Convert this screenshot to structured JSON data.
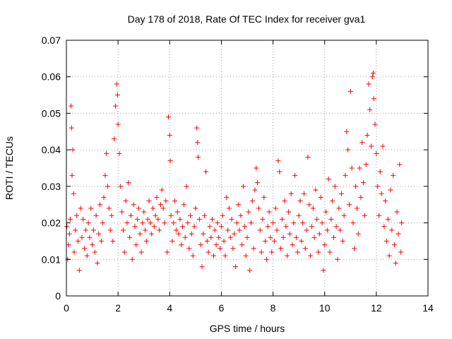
{
  "chart_data": {
    "type": "scatter",
    "title": "Day 178 of 2018, Rate Of TEC Index for receiver gva1",
    "xlabel": "GPS time / hours",
    "ylabel": "ROTI / TECUs",
    "xlim": [
      0,
      14
    ],
    "ylim": [
      0,
      0.07
    ],
    "xticks": [
      "0",
      "2",
      "4",
      "6",
      "8",
      "10",
      "12",
      "14"
    ],
    "yticks": [
      "0",
      "0.01",
      "0.02",
      "0.03",
      "0.04",
      "0.05",
      "0.06",
      "0.07"
    ],
    "grid": true,
    "marker": "plus",
    "color": "#ff0000",
    "series": [
      {
        "points": [
          [
            0.02,
            0.019
          ],
          [
            0.05,
            0.01
          ],
          [
            0.08,
            0.014
          ],
          [
            0.12,
            0.017
          ],
          [
            0.15,
            0.021
          ],
          [
            0.18,
            0.052
          ],
          [
            0.2,
            0.046
          ],
          [
            0.22,
            0.033
          ],
          [
            0.25,
            0.04
          ],
          [
            0.28,
            0.028
          ],
          [
            0.3,
            0.012
          ],
          [
            0.35,
            0.018
          ],
          [
            0.4,
            0.022
          ],
          [
            0.45,
            0.015
          ],
          [
            0.5,
            0.007
          ],
          [
            0.55,
            0.024
          ],
          [
            0.6,
            0.016
          ],
          [
            0.65,
            0.021
          ],
          [
            0.7,
            0.013
          ],
          [
            0.75,
            0.018
          ],
          [
            0.8,
            0.011
          ],
          [
            0.85,
            0.02
          ],
          [
            0.9,
            0.016
          ],
          [
            0.95,
            0.024
          ],
          [
            1.0,
            0.014
          ],
          [
            1.05,
            0.018
          ],
          [
            1.1,
            0.012
          ],
          [
            1.15,
            0.022
          ],
          [
            1.2,
            0.009
          ],
          [
            1.25,
            0.017
          ],
          [
            1.3,
            0.025
          ],
          [
            1.35,
            0.015
          ],
          [
            1.4,
            0.02
          ],
          [
            1.45,
            0.027
          ],
          [
            1.5,
            0.033
          ],
          [
            1.55,
            0.039
          ],
          [
            1.6,
            0.03
          ],
          [
            1.65,
            0.024
          ],
          [
            1.7,
            0.018
          ],
          [
            1.75,
            0.022
          ],
          [
            1.8,
            0.015
          ],
          [
            1.85,
            0.043
          ],
          [
            1.9,
            0.052
          ],
          [
            1.95,
            0.058
          ],
          [
            1.98,
            0.055
          ],
          [
            2.0,
            0.047
          ],
          [
            2.05,
            0.039
          ],
          [
            2.1,
            0.03
          ],
          [
            2.15,
            0.023
          ],
          [
            2.2,
            0.018
          ],
          [
            2.25,
            0.012
          ],
          [
            2.3,
            0.026
          ],
          [
            2.35,
            0.02
          ],
          [
            2.4,
            0.031
          ],
          [
            2.45,
            0.016
          ],
          [
            2.5,
            0.022
          ],
          [
            2.55,
            0.01
          ],
          [
            2.6,
            0.025
          ],
          [
            2.65,
            0.019
          ],
          [
            2.7,
            0.014
          ],
          [
            2.75,
            0.021
          ],
          [
            2.8,
            0.024
          ],
          [
            2.85,
            0.017
          ],
          [
            2.9,
            0.012
          ],
          [
            2.95,
            0.02
          ],
          [
            3.0,
            0.023
          ],
          [
            3.05,
            0.018
          ],
          [
            3.1,
            0.015
          ],
          [
            3.15,
            0.021
          ],
          [
            3.2,
            0.026
          ],
          [
            3.25,
            0.02
          ],
          [
            3.3,
            0.017
          ],
          [
            3.35,
            0.024
          ],
          [
            3.4,
            0.019
          ],
          [
            3.45,
            0.022
          ],
          [
            3.5,
            0.027
          ],
          [
            3.55,
            0.021
          ],
          [
            3.6,
            0.018
          ],
          [
            3.65,
            0.025
          ],
          [
            3.7,
            0.029
          ],
          [
            3.75,
            0.024
          ],
          [
            3.8,
            0.02
          ],
          [
            3.85,
            0.026
          ],
          [
            3.9,
            0.012
          ],
          [
            3.95,
            0.049
          ],
          [
            4.0,
            0.044
          ],
          [
            4.02,
            0.037
          ],
          [
            4.05,
            0.022
          ],
          [
            4.1,
            0.015
          ],
          [
            4.15,
            0.02
          ],
          [
            4.2,
            0.026
          ],
          [
            4.25,
            0.018
          ],
          [
            4.3,
            0.023
          ],
          [
            4.35,
            0.017
          ],
          [
            4.4,
            0.021
          ],
          [
            4.45,
            0.014
          ],
          [
            4.5,
            0.019
          ],
          [
            4.55,
            0.025
          ],
          [
            4.6,
            0.016
          ],
          [
            4.65,
            0.03
          ],
          [
            4.7,
            0.02
          ],
          [
            4.75,
            0.013
          ],
          [
            4.8,
            0.022
          ],
          [
            4.85,
            0.017
          ],
          [
            4.9,
            0.011
          ],
          [
            4.95,
            0.019
          ],
          [
            5.0,
            0.024
          ],
          [
            5.05,
            0.046
          ],
          [
            5.08,
            0.042
          ],
          [
            5.1,
            0.038
          ],
          [
            5.15,
            0.021
          ],
          [
            5.2,
            0.014
          ],
          [
            5.25,
            0.008
          ],
          [
            5.3,
            0.017
          ],
          [
            5.35,
            0.022
          ],
          [
            5.4,
            0.034
          ],
          [
            5.45,
            0.015
          ],
          [
            5.5,
            0.012
          ],
          [
            5.55,
            0.019
          ],
          [
            5.6,
            0.016
          ],
          [
            5.65,
            0.021
          ],
          [
            5.7,
            0.011
          ],
          [
            5.75,
            0.018
          ],
          [
            5.8,
            0.014
          ],
          [
            5.85,
            0.02
          ],
          [
            5.9,
            0.016
          ],
          [
            5.95,
            0.013
          ],
          [
            6.0,
            0.019
          ],
          [
            6.05,
            0.022
          ],
          [
            6.1,
            0.015
          ],
          [
            6.15,
            0.011
          ],
          [
            6.2,
            0.027
          ],
          [
            6.25,
            0.018
          ],
          [
            6.3,
            0.024
          ],
          [
            6.35,
            0.016
          ],
          [
            6.4,
            0.021
          ],
          [
            6.45,
            0.013
          ],
          [
            6.5,
            0.017
          ],
          [
            6.55,
            0.008
          ],
          [
            6.6,
            0.02
          ],
          [
            6.65,
            0.025
          ],
          [
            6.7,
            0.018
          ],
          [
            6.75,
            0.022
          ],
          [
            6.8,
            0.014
          ],
          [
            6.85,
            0.03
          ],
          [
            6.9,
            0.019
          ],
          [
            6.95,
            0.011
          ],
          [
            7.0,
            0.016
          ],
          [
            7.05,
            0.023
          ],
          [
            7.1,
            0.007
          ],
          [
            7.15,
            0.02
          ],
          [
            7.2,
            0.026
          ],
          [
            7.25,
            0.013
          ],
          [
            7.3,
            0.029
          ],
          [
            7.35,
            0.035
          ],
          [
            7.4,
            0.031
          ],
          [
            7.45,
            0.024
          ],
          [
            7.5,
            0.018
          ],
          [
            7.55,
            0.012
          ],
          [
            7.6,
            0.021
          ],
          [
            7.65,
            0.027
          ],
          [
            7.7,
            0.015
          ],
          [
            7.75,
            0.01
          ],
          [
            7.8,
            0.019
          ],
          [
            7.85,
            0.023
          ],
          [
            7.9,
            0.016
          ],
          [
            7.95,
            0.012
          ],
          [
            8.0,
            0.02
          ],
          [
            8.05,
            0.015
          ],
          [
            8.1,
            0.024
          ],
          [
            8.15,
            0.018
          ],
          [
            8.2,
            0.037
          ],
          [
            8.25,
            0.034
          ],
          [
            8.3,
            0.013
          ],
          [
            8.35,
            0.021
          ],
          [
            8.4,
            0.016
          ],
          [
            8.45,
            0.026
          ],
          [
            8.5,
            0.019
          ],
          [
            8.55,
            0.011
          ],
          [
            8.6,
            0.023
          ],
          [
            8.65,
            0.017
          ],
          [
            8.7,
            0.028
          ],
          [
            8.75,
            0.014
          ],
          [
            8.8,
            0.02
          ],
          [
            8.85,
            0.033
          ],
          [
            8.9,
            0.016
          ],
          [
            8.95,
            0.012
          ],
          [
            9.0,
            0.022
          ],
          [
            9.05,
            0.026
          ],
          [
            9.1,
            0.015
          ],
          [
            9.15,
            0.02
          ],
          [
            9.2,
            0.028
          ],
          [
            9.25,
            0.013
          ],
          [
            9.3,
            0.018
          ],
          [
            9.35,
            0.038
          ],
          [
            9.4,
            0.025
          ],
          [
            9.45,
            0.011
          ],
          [
            9.5,
            0.019
          ],
          [
            9.55,
            0.024
          ],
          [
            9.6,
            0.016
          ],
          [
            9.65,
            0.029
          ],
          [
            9.7,
            0.021
          ],
          [
            9.75,
            0.012
          ],
          [
            9.8,
            0.017
          ],
          [
            9.85,
            0.027
          ],
          [
            9.9,
            0.02
          ],
          [
            9.95,
            0.007
          ],
          [
            10.0,
            0.014
          ],
          [
            10.05,
            0.023
          ],
          [
            10.1,
            0.018
          ],
          [
            10.15,
            0.032
          ],
          [
            10.2,
            0.012
          ],
          [
            10.25,
            0.021
          ],
          [
            10.3,
            0.026
          ],
          [
            10.35,
            0.016
          ],
          [
            10.4,
            0.03
          ],
          [
            10.45,
            0.019
          ],
          [
            10.5,
            0.01
          ],
          [
            10.55,
            0.024
          ],
          [
            10.6,
            0.018
          ],
          [
            10.65,
            0.028
          ],
          [
            10.7,
            0.015
          ],
          [
            10.75,
            0.022
          ],
          [
            10.8,
            0.033
          ],
          [
            10.85,
            0.045
          ],
          [
            10.9,
            0.04
          ],
          [
            10.95,
            0.025
          ],
          [
            11.0,
            0.056
          ],
          [
            11.05,
            0.035
          ],
          [
            11.1,
            0.02
          ],
          [
            11.15,
            0.013
          ],
          [
            11.2,
            0.03
          ],
          [
            11.25,
            0.024
          ],
          [
            11.3,
            0.017
          ],
          [
            11.35,
            0.035
          ],
          [
            11.4,
            0.027
          ],
          [
            11.45,
            0.042
          ],
          [
            11.5,
            0.031
          ],
          [
            11.55,
            0.022
          ],
          [
            11.6,
            0.036
          ],
          [
            11.65,
            0.044
          ],
          [
            11.7,
            0.058
          ],
          [
            11.75,
            0.051
          ],
          [
            11.8,
            0.041
          ],
          [
            11.85,
            0.06
          ],
          [
            11.88,
            0.061
          ],
          [
            11.9,
            0.054
          ],
          [
            11.95,
            0.047
          ],
          [
            12.0,
            0.039
          ],
          [
            12.05,
            0.03
          ],
          [
            12.1,
            0.022
          ],
          [
            12.15,
            0.034
          ],
          [
            12.2,
            0.028
          ],
          [
            12.25,
            0.041
          ],
          [
            12.3,
            0.019
          ],
          [
            12.35,
            0.026
          ],
          [
            12.4,
            0.015
          ],
          [
            12.45,
            0.021
          ],
          [
            12.5,
            0.011
          ],
          [
            12.55,
            0.029
          ],
          [
            12.6,
            0.018
          ],
          [
            12.65,
            0.033
          ],
          [
            12.7,
            0.014
          ],
          [
            12.75,
            0.009
          ],
          [
            12.8,
            0.023
          ],
          [
            12.85,
            0.017
          ],
          [
            12.9,
            0.036
          ],
          [
            12.95,
            0.012
          ],
          [
            12.98,
            0.02
          ]
        ]
      }
    ]
  }
}
